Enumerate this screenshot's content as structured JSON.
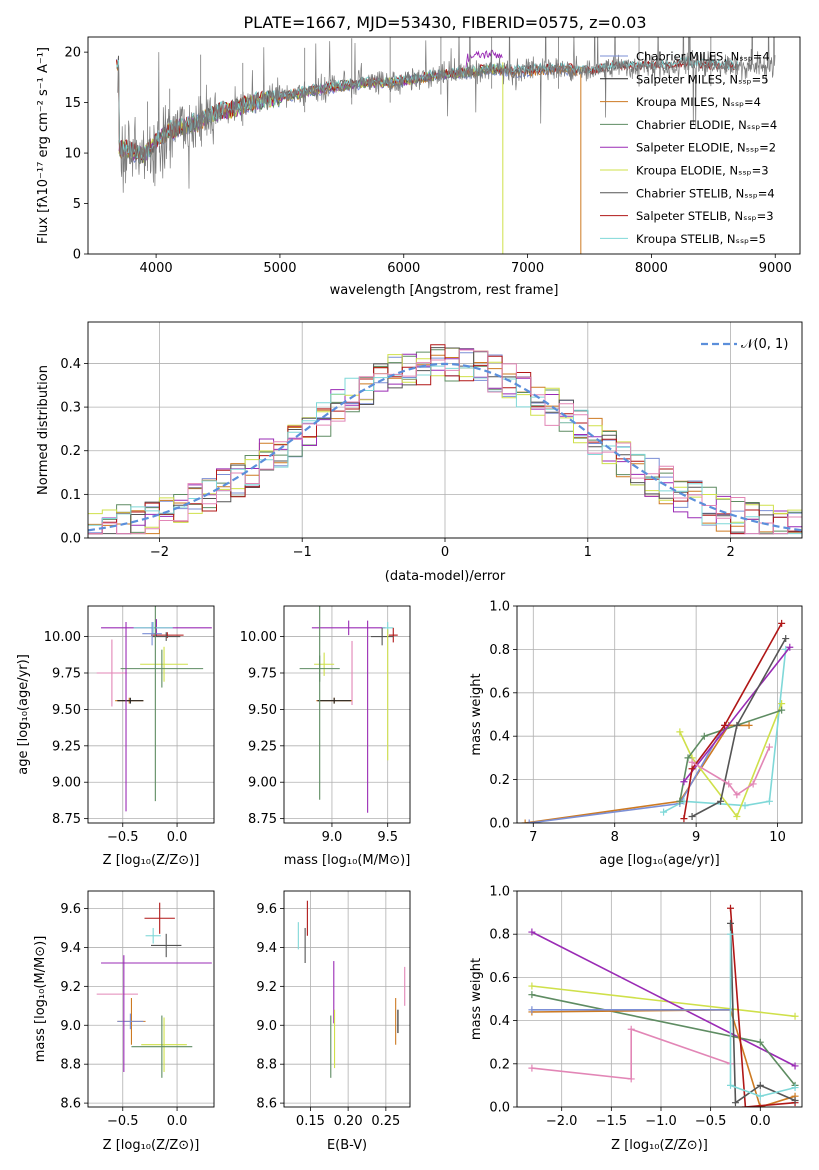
{
  "figure_title": "PLATE=1667, MJD=53430, FIBERID=0575, z=0.03",
  "colors": {
    "Chabrier MILES": "#7b8fd6",
    "Salpeter MILES": "#222222",
    "Kroupa MILES": "#cd7a22",
    "Chabrier ELODIE": "#5e8c62",
    "Salpeter ELODIE": "#9a2bb5",
    "Kroupa ELODIE": "#cfe04a",
    "Chabrier STELIB": "#555555",
    "Salpeter STELIB": "#b01717",
    "Kroupa STELIB": "#7fd8d8",
    "pink": "#e286b6",
    "normal_curve": "#5b8fdb"
  },
  "chart_data": [
    {
      "id": "spectrum",
      "type": "line",
      "title": "PLATE=1667, MJD=53430, FIBERID=0575, z=0.03",
      "xlabel": "wavelength [Angstrom, rest frame]",
      "ylabel": "Flux [fλ10⁻¹⁷ erg cm⁻² s⁻¹ A⁻¹]",
      "xlim": [
        3450,
        9200
      ],
      "ylim": [
        0,
        21.5
      ],
      "xticks": [
        4000,
        5000,
        6000,
        7000,
        8000,
        9000
      ],
      "yticks": [
        0,
        5,
        10,
        15,
        20
      ],
      "grid": false,
      "legend": "top-right",
      "legend_entries": [
        "Chabrier MILES, Nₛₛₚ=4",
        "Salpeter MILES, Nₛₛₚ=5",
        "Kroupa MILES, Nₛₛₚ=4",
        "Chabrier ELODIE, Nₛₛₚ=4",
        "Salpeter ELODIE, Nₛₛₚ=2",
        "Kroupa ELODIE, Nₛₛₚ=3",
        "Chabrier STELIB, Nₛₛₚ=4",
        "Salpeter STELIB, Nₛₛₚ=3",
        "Kroupa STELIB, Nₛₛₚ=5"
      ],
      "continuum": [
        [
          3700,
          10.5
        ],
        [
          3800,
          10.2
        ],
        [
          3900,
          9.8
        ],
        [
          4000,
          11.2
        ],
        [
          4100,
          12.2
        ],
        [
          4200,
          12.6
        ],
        [
          4300,
          12.9
        ],
        [
          4500,
          14
        ],
        [
          4700,
          14.7
        ],
        [
          4900,
          15.3
        ],
        [
          5100,
          15.8
        ],
        [
          5300,
          16.3
        ],
        [
          5500,
          16.7
        ],
        [
          5700,
          17
        ],
        [
          5900,
          17
        ],
        [
          6100,
          17.4
        ],
        [
          6300,
          17.8
        ],
        [
          6500,
          18
        ],
        [
          6700,
          18.4
        ],
        [
          6900,
          18.1
        ],
        [
          7100,
          18.3
        ],
        [
          7300,
          18.4
        ],
        [
          7500,
          18.1
        ],
        [
          7700,
          18.6
        ],
        [
          7900,
          18.6
        ],
        [
          8100,
          18.6
        ],
        [
          8300,
          18.9
        ],
        [
          8500,
          18.6
        ],
        [
          8700,
          18.6
        ],
        [
          8900,
          18.7
        ]
      ]
    },
    {
      "id": "residuals",
      "type": "histogram",
      "xlabel": "(data-model)/error",
      "ylabel": "Normed distribution",
      "xlim": [
        -2.5,
        2.5
      ],
      "ylim": [
        0,
        0.495
      ],
      "xticks": [
        -2,
        -1,
        0,
        1,
        2
      ],
      "yticks": [
        0.0,
        0.1,
        0.2,
        0.3,
        0.4
      ],
      "grid": true,
      "legend": "top-right",
      "normal_label": "𝒩(0, 1)",
      "bin_width": 0.1
    },
    {
      "id": "age_vs_Z",
      "type": "errorbar",
      "xlabel": "Z [log₁₀(Z/Z⊙)]",
      "ylabel": "age  [log₁₀(age/yr)]",
      "xlim": [
        -0.82,
        0.34
      ],
      "ylim": [
        8.72,
        10.21
      ],
      "xticks": [
        -0.5,
        0.0
      ],
      "yticks": [
        8.75,
        9.0,
        9.25,
        9.5,
        9.75,
        10.0
      ],
      "grid": true,
      "points": [
        {
          "m": "Salpeter ELODIE",
          "x": -0.19,
          "xe": 0.51,
          "y": 10.06,
          "ye": 0.06
        },
        {
          "m": "Kroupa STELIB",
          "x": -0.22,
          "xe": 0.18,
          "y": 10.06,
          "ye": 0.04
        },
        {
          "m": "Salpeter STELIB",
          "x": -0.09,
          "xe": 0.15,
          "y": 10.01,
          "ye": 0.02
        },
        {
          "m": "Chabrier STELIB",
          "x": -0.1,
          "xe": 0.13,
          "y": 10.0,
          "ye": 0.03
        },
        {
          "m": "Chabrier MILES",
          "x": -0.23,
          "xe": 0.09,
          "y": 10.02,
          "ye": 0.08
        },
        {
          "m": "Kroupa ELODIE",
          "x": -0.12,
          "xe": 0.22,
          "y": 9.81,
          "ye": 0.12
        },
        {
          "m": "Chabrier ELODIE",
          "x": -0.14,
          "xe": 0.38,
          "y": 9.78,
          "ye": 0.13
        },
        {
          "m": "pink",
          "x": -0.6,
          "xe": 0.14,
          "y": 9.75,
          "ye": 0.23
        },
        {
          "m": "Kroupa MILES",
          "x": -0.44,
          "xe": 0.13,
          "y": 9.56,
          "ye": 0.02
        },
        {
          "m": "Salpeter MILES",
          "x": -0.43,
          "xe": 0.12,
          "y": 9.56,
          "ye": 0.02
        },
        {
          "m": "Chabrier ELODIE",
          "x": -0.2,
          "xe": 0.0,
          "y": 9.57,
          "ye": 0.7
        },
        {
          "m": "Salpeter ELODIE",
          "x": -0.47,
          "xe": 0.0,
          "y": 9.45,
          "ye": 0.65
        }
      ]
    },
    {
      "id": "age_vs_mass",
      "type": "errorbar",
      "xlabel": "mass [log₁₀(M/M⊙)]",
      "ylabel": "",
      "xlim": [
        8.57,
        9.7
      ],
      "ylim": [
        8.72,
        10.21
      ],
      "xticks": [
        9.0,
        9.5
      ],
      "yticks": [
        8.75,
        9.0,
        9.25,
        9.5,
        9.75,
        10.0
      ],
      "grid": true,
      "points": [
        {
          "m": "Salpeter ELODIE",
          "x": 9.15,
          "xe": 0.33,
          "y": 10.06,
          "ye": 0.05
        },
        {
          "m": "Kroupa STELIB",
          "x": 9.5,
          "xe": 0.05,
          "y": 10.06,
          "ye": 0.04
        },
        {
          "m": "Salpeter STELIB",
          "x": 9.55,
          "xe": 0.04,
          "y": 10.01,
          "ye": 0.05
        },
        {
          "m": "Chabrier STELIB",
          "x": 9.45,
          "xe": 0.1,
          "y": 10.0,
          "ye": 0.06
        },
        {
          "m": "Kroupa ELODIE",
          "x": 8.93,
          "xe": 0.09,
          "y": 9.81,
          "ye": 0.08
        },
        {
          "m": "Chabrier ELODIE",
          "x": 8.89,
          "xe": 0.18,
          "y": 9.78,
          "ye": 0.09
        },
        {
          "m": "pink",
          "x": 9.18,
          "xe": 0.0,
          "y": 9.75,
          "ye": 0.22
        },
        {
          "m": "Kroupa MILES",
          "x": 9.02,
          "xe": 0.16,
          "y": 9.56,
          "ye": 0.02
        },
        {
          "m": "Salpeter MILES",
          "x": 9.02,
          "xe": 0.15,
          "y": 9.56,
          "ye": 0.02
        },
        {
          "m": "Chabrier ELODIE",
          "x": 8.89,
          "xe": 0.0,
          "y": 9.55,
          "ye": 0.67
        },
        {
          "m": "Salpeter ELODIE",
          "x": 9.32,
          "xe": 0.0,
          "y": 9.45,
          "ye": 0.66
        },
        {
          "m": "Kroupa ELODIE",
          "x": 9.5,
          "xe": 0.0,
          "y": 9.6,
          "ye": 0.45
        }
      ]
    },
    {
      "id": "massweight_vs_age",
      "type": "line",
      "xlabel": "age  [log₁₀(age/yr)]",
      "ylabel": "mass weight",
      "xlim": [
        6.8,
        10.3
      ],
      "ylim": [
        0,
        1.0
      ],
      "xticks": [
        7,
        8,
        9,
        10
      ],
      "yticks": [
        0.0,
        0.2,
        0.4,
        0.6,
        0.8,
        1.0
      ],
      "grid": true,
      "series": [
        {
          "m": "Kroupa MILES",
          "x": [
            6.9,
            8.8,
            9.4,
            9.65
          ],
          "y": [
            0.0,
            0.1,
            0.45,
            0.45
          ]
        },
        {
          "m": "Chabrier MILES",
          "x": [
            6.95,
            8.8,
            9.35
          ],
          "y": [
            0.0,
            0.09,
            0.45
          ]
        },
        {
          "m": "Kroupa STELIB",
          "x": [
            8.6,
            8.85,
            9.6,
            9.9,
            10.1
          ],
          "y": [
            0.05,
            0.1,
            0.08,
            0.1,
            0.8
          ]
        },
        {
          "m": "Kroupa ELODIE",
          "x": [
            8.8,
            8.95,
            9.5,
            10.05
          ],
          "y": [
            0.42,
            0.3,
            0.03,
            0.55
          ]
        },
        {
          "m": "Chabrier ELODIE",
          "x": [
            8.8,
            8.9,
            9.1,
            10.05
          ],
          "y": [
            0.1,
            0.3,
            0.4,
            0.52
          ]
        },
        {
          "m": "Salpeter ELODIE",
          "x": [
            8.85,
            10.15
          ],
          "y": [
            0.19,
            0.81
          ]
        },
        {
          "m": "Salpeter STELIB",
          "x": [
            8.85,
            8.95,
            9.35,
            10.05
          ],
          "y": [
            0.02,
            0.25,
            0.45,
            0.92
          ]
        },
        {
          "m": "Chabrier STELIB",
          "x": [
            8.95,
            9.3,
            9.5,
            10.1
          ],
          "y": [
            0.03,
            0.1,
            0.45,
            0.85
          ]
        },
        {
          "m": "pink",
          "x": [
            8.95,
            9.4,
            9.5,
            9.7,
            9.9
          ],
          "y": [
            0.28,
            0.18,
            0.13,
            0.18,
            0.35
          ]
        }
      ]
    },
    {
      "id": "mass_vs_Z",
      "type": "errorbar",
      "xlabel": "Z [log₁₀(Z/Z⊙)]",
      "ylabel": "mass [log₁₀(M/M⊙)]",
      "xlim": [
        -0.82,
        0.34
      ],
      "ylim": [
        8.58,
        9.69
      ],
      "xticks": [
        -0.5,
        0.0
      ],
      "yticks": [
        8.6,
        8.8,
        9.0,
        9.2,
        9.4,
        9.6
      ],
      "grid": true,
      "points": [
        {
          "m": "Salpeter STELIB",
          "x": -0.16,
          "xe": 0.14,
          "y": 9.55,
          "ye": 0.08
        },
        {
          "m": "Kroupa STELIB",
          "x": -0.22,
          "xe": 0.07,
          "y": 9.46,
          "ye": 0.04
        },
        {
          "m": "Chabrier STELIB",
          "x": -0.1,
          "xe": 0.14,
          "y": 9.41,
          "ye": 0.06
        },
        {
          "m": "Salpeter ELODIE",
          "x": -0.19,
          "xe": 0.51,
          "y": 9.32,
          "ye": 0.0
        },
        {
          "m": "pink",
          "x": -0.55,
          "xe": 0.19,
          "y": 9.16,
          "ye": 0.0
        },
        {
          "m": "Kroupa MILES",
          "x": -0.42,
          "xe": 0.13,
          "y": 9.02,
          "ye": 0.12
        },
        {
          "m": "Chabrier MILES",
          "x": -0.43,
          "xe": 0.12,
          "y": 9.02,
          "ye": 0.04
        },
        {
          "m": "Kroupa ELODIE",
          "x": -0.12,
          "xe": 0.21,
          "y": 8.9,
          "ye": 0.14
        },
        {
          "m": "Chabrier ELODIE",
          "x": -0.14,
          "xe": 0.28,
          "y": 8.89,
          "ye": 0.16
        },
        {
          "m": "Salpeter ELODIE",
          "x": -0.49,
          "xe": 0.0,
          "y": 9.06,
          "ye": 0.3
        }
      ]
    },
    {
      "id": "mass_vs_ebv",
      "type": "errorbar",
      "xlabel": "E(B-V)",
      "ylabel": "",
      "xlim": [
        0.115,
        0.282
      ],
      "ylim": [
        8.58,
        9.69
      ],
      "xticks": [
        0.15,
        0.2,
        0.25
      ],
      "yticks": [
        8.6,
        8.8,
        9.0,
        9.2,
        9.4,
        9.6
      ],
      "grid": true,
      "points": [
        {
          "m": "Salpeter STELIB",
          "x": 0.146,
          "xe": 0.0,
          "y": 9.55,
          "ye": 0.09
        },
        {
          "m": "Kroupa STELIB",
          "x": 0.134,
          "xe": 0.0,
          "y": 9.46,
          "ye": 0.07
        },
        {
          "m": "Chabrier STELIB",
          "x": 0.143,
          "xe": 0.0,
          "y": 9.41,
          "ye": 0.09
        },
        {
          "m": "Salpeter ELODIE",
          "x": 0.181,
          "xe": 0.0,
          "y": 9.17,
          "ye": 0.16
        },
        {
          "m": "Kroupa ELODIE",
          "x": 0.182,
          "xe": 0.0,
          "y": 8.93,
          "ye": 0.15
        },
        {
          "m": "Chabrier ELODIE",
          "x": 0.177,
          "xe": 0.0,
          "y": 8.89,
          "ye": 0.16
        },
        {
          "m": "Kroupa MILES",
          "x": 0.263,
          "xe": 0.0,
          "y": 9.02,
          "ye": 0.12
        },
        {
          "m": "Salpeter MILES",
          "x": 0.266,
          "xe": 0.0,
          "y": 9.02,
          "ye": 0.06
        },
        {
          "m": "pink",
          "x": 0.275,
          "xe": 0.0,
          "y": 9.2,
          "ye": 0.1
        }
      ]
    },
    {
      "id": "massweight_vs_Z",
      "type": "line",
      "xlabel": "Z [log₁₀(Z/Z⊙)]",
      "ylabel": "mass weight",
      "xlim": [
        -2.45,
        0.42
      ],
      "ylim": [
        0,
        1.0
      ],
      "xticks": [
        -2.0,
        -1.5,
        -1.0,
        -0.5,
        0.0
      ],
      "yticks": [
        0.0,
        0.2,
        0.4,
        0.6,
        0.8,
        1.0
      ],
      "grid": true,
      "series": [
        {
          "m": "Kroupa ELODIE",
          "x": [
            -2.3,
            0.35
          ],
          "y": [
            0.56,
            0.42
          ]
        },
        {
          "m": "Salpeter ELODIE",
          "x": [
            -2.3,
            0.35
          ],
          "y": [
            0.81,
            0.19
          ]
        },
        {
          "m": "Chabrier ELODIE",
          "x": [
            -2.3,
            0.0,
            0.35
          ],
          "y": [
            0.52,
            0.3,
            0.1
          ]
        },
        {
          "m": "Kroupa MILES",
          "x": [
            -2.3,
            -0.3,
            0.0,
            0.35
          ],
          "y": [
            0.44,
            0.45,
            0.0,
            0.05
          ]
        },
        {
          "m": "Chabrier MILES",
          "x": [
            -2.3,
            -0.3
          ],
          "y": [
            0.45,
            0.45
          ]
        },
        {
          "m": "pink",
          "x": [
            -2.3,
            -1.3,
            -1.3,
            -0.3
          ],
          "y": [
            0.18,
            0.13,
            0.36,
            0.2
          ]
        },
        {
          "m": "Salpeter STELIB",
          "x": [
            -0.3,
            -0.15,
            0.35
          ],
          "y": [
            0.92,
            0.0,
            0.02
          ]
        },
        {
          "m": "Chabrier STELIB",
          "x": [
            -0.3,
            -0.25,
            0.0,
            0.35
          ],
          "y": [
            0.85,
            0.02,
            0.1,
            0.03
          ]
        },
        {
          "m": "Kroupa STELIB",
          "x": [
            -0.3,
            -0.3,
            0.0,
            0.35
          ],
          "y": [
            0.8,
            0.1,
            0.05,
            0.09
          ]
        }
      ]
    }
  ]
}
